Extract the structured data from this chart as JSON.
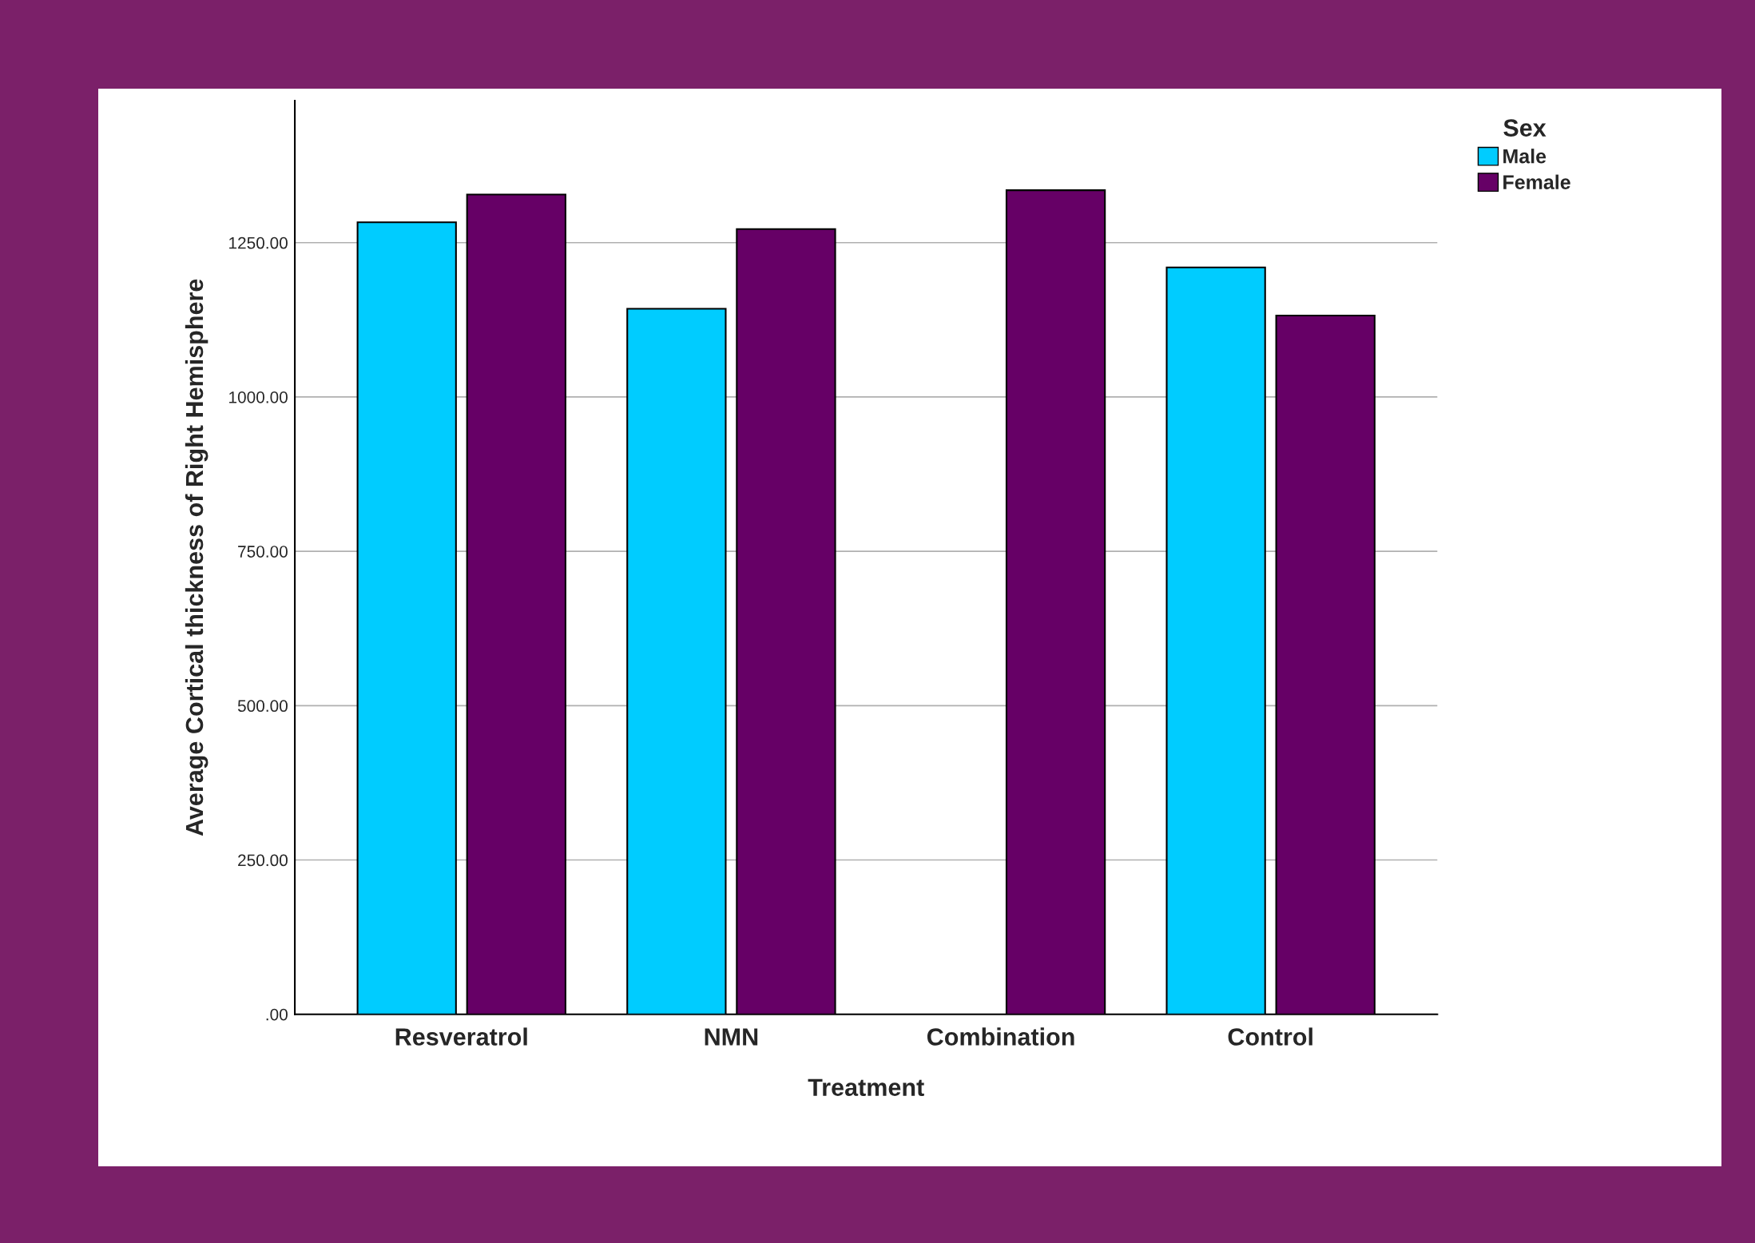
{
  "chart_data": {
    "type": "bar",
    "xlabel": "Treatment",
    "ylabel": "Average Cortical thickness of Right Hemisphere",
    "legend_title": "Sex",
    "categories": [
      "Resveratrol",
      "NMN",
      "Combination",
      "Control"
    ],
    "series": [
      {
        "name": "Male",
        "color": "#00ccff",
        "values": [
          1283,
          1143,
          null,
          1210
        ]
      },
      {
        "name": "Female",
        "color": "#660066",
        "values": [
          1328,
          1272,
          1335,
          1132
        ]
      }
    ],
    "ylim": [
      0,
      1480
    ],
    "yticks": [
      {
        "value": 0,
        "label": ".00"
      },
      {
        "value": 250,
        "label": "250.00"
      },
      {
        "value": 500,
        "label": "500.00"
      },
      {
        "value": 750,
        "label": "750.00"
      },
      {
        "value": 1000,
        "label": "1000.00"
      },
      {
        "value": 1250,
        "label": "1250.00"
      }
    ],
    "grid": "y",
    "legend": "top right"
  }
}
